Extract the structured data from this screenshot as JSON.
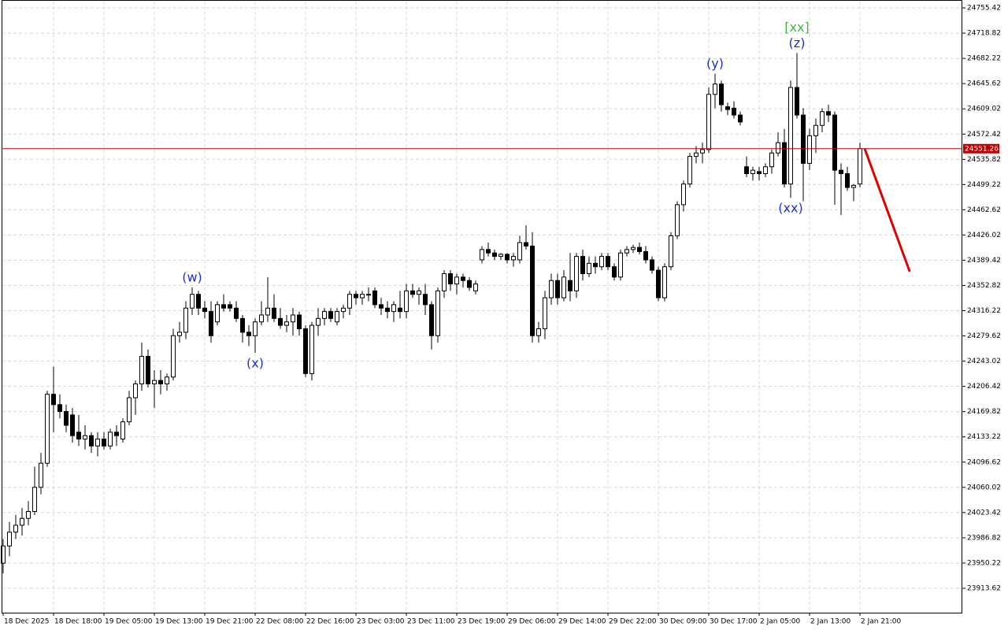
{
  "chart_data": {
    "type": "candlestick",
    "categories": [
      "18 Dec 2025",
      null,
      null,
      null,
      null,
      null,
      null,
      null,
      "18 Dec 18:00",
      null,
      null,
      null,
      null,
      null,
      null,
      null,
      "19 Dec 05:00",
      null,
      null,
      null,
      null,
      null,
      null,
      null,
      "19 Dec 13:00",
      null,
      null,
      null,
      null,
      null,
      null,
      null,
      "19 Dec 21:00",
      null,
      null,
      null,
      null,
      null,
      null,
      null,
      "22 Dec 08:00",
      null,
      null,
      null,
      null,
      null,
      null,
      null,
      "22 Dec 16:00",
      null,
      null,
      null,
      null,
      null,
      null,
      null,
      "23 Dec 03:00",
      null,
      null,
      null,
      null,
      null,
      null,
      null,
      "23 Dec 11:00",
      null,
      null,
      null,
      null,
      null,
      null,
      null,
      "23 Dec 19:00",
      null,
      null,
      null,
      null,
      null,
      null,
      null,
      "29 Dec 06:00",
      null,
      null,
      null,
      null,
      null,
      null,
      null,
      "29 Dec 14:00",
      null,
      null,
      null,
      null,
      null,
      null,
      null,
      "29 Dec 22:00",
      null,
      null,
      null,
      null,
      null,
      null,
      null,
      "30 Dec 09:00",
      null,
      null,
      null,
      null,
      null,
      null,
      null,
      "30 Dec 17:00",
      null,
      null,
      null,
      null,
      null,
      null,
      null,
      "2 Jan 05:00",
      null,
      null,
      null,
      null,
      null,
      null,
      null,
      "2 Jan 13:00",
      null,
      null,
      null,
      null,
      null,
      null,
      null,
      "2 Jan 21:00"
    ],
    "open": [
      23950,
      23975,
      23995,
      24005,
      24015,
      24025,
      24060,
      24095,
      24195,
      24180,
      24170,
      24165,
      24140,
      24130,
      24135,
      24120,
      24130,
      24120,
      24140,
      24130,
      24155,
      24190,
      24210,
      24250,
      24210,
      24215,
      24210,
      24220,
      24280,
      24285,
      24320,
      24340,
      24320,
      24315,
      24300,
      24325,
      24325,
      24320,
      24305,
      24285,
      24280,
      24300,
      24310,
      24320,
      24305,
      24295,
      24300,
      24310,
      24290,
      24225,
      24295,
      24305,
      24315,
      24300,
      24315,
      24320,
      24340,
      24335,
      24340,
      24345,
      24325,
      24320,
      24315,
      24320,
      24315,
      24345,
      24340,
      24340,
      24325,
      24280,
      24345,
      24370,
      24355,
      24365,
      24360,
      24345,
      24390,
      24405,
      24400,
      24395,
      24398,
      24390,
      24390,
      24415,
      24410,
      24280,
      24290,
      24335,
      24360,
      24335,
      24360,
      24345,
      24395,
      24370,
      24385,
      24380,
      24395,
      24380,
      24365,
      24400,
      24405,
      24408,
      24402,
      24390,
      24375,
      24335,
      24380,
      24425,
      24470,
      24500,
      24540,
      24545,
      24550,
      24630,
      24645,
      24612,
      24610,
      24600,
      24525,
      24515,
      24518,
      24515,
      24525,
      24545,
      24560,
      24500,
      24640,
      24600,
      24530,
      24570,
      24585,
      24605,
      24600,
      24520,
      24515,
      24495,
      24500
    ],
    "high": [
      23985,
      24010,
      24020,
      24030,
      24040,
      24090,
      24110,
      24200,
      24235,
      24195,
      24180,
      24175,
      24165,
      24150,
      24140,
      24140,
      24140,
      24145,
      24150,
      24160,
      24200,
      24215,
      24270,
      24260,
      24230,
      24230,
      24225,
      24290,
      24300,
      24330,
      24350,
      24345,
      24330,
      24330,
      24330,
      24340,
      24330,
      24330,
      24310,
      24295,
      24305,
      24330,
      24365,
      24340,
      24320,
      24310,
      24320,
      24315,
      24295,
      24300,
      24320,
      24320,
      24320,
      24320,
      24325,
      24345,
      24345,
      24345,
      24350,
      24350,
      24335,
      24330,
      24330,
      24345,
      24355,
      24355,
      24350,
      24355,
      24330,
      24350,
      24375,
      24375,
      24370,
      24370,
      24365,
      24360,
      24410,
      24415,
      24405,
      24400,
      24400,
      24400,
      24425,
      24440,
      24430,
      24300,
      24345,
      24370,
      24370,
      24375,
      24400,
      24400,
      24405,
      24395,
      24395,
      24400,
      24400,
      24385,
      24405,
      24410,
      24412,
      24415,
      24410,
      24395,
      24380,
      24385,
      24430,
      24475,
      24505,
      24545,
      24555,
      24560,
      24640,
      24660,
      24650,
      24618,
      24620,
      24605,
      24540,
      24525,
      24525,
      24530,
      24550,
      24575,
      24580,
      24650,
      24690,
      24610,
      24580,
      24595,
      24610,
      24615,
      24605,
      24530,
      24525,
      24500,
      24560
    ],
    "low": [
      23935,
      23960,
      23985,
      23990,
      24005,
      24020,
      24050,
      24090,
      24140,
      24160,
      24140,
      24125,
      24120,
      24115,
      24110,
      24105,
      24115,
      24115,
      24120,
      24125,
      24150,
      24165,
      24200,
      24205,
      24175,
      24195,
      24200,
      24215,
      24270,
      24275,
      24310,
      24310,
      24305,
      24270,
      24295,
      24315,
      24315,
      24300,
      24270,
      24265,
      24255,
      24295,
      24300,
      24300,
      24290,
      24285,
      24280,
      24280,
      24220,
      24215,
      24280,
      24295,
      24300,
      24295,
      24305,
      24310,
      24325,
      24325,
      24330,
      24320,
      24310,
      24305,
      24300,
      24305,
      24305,
      24335,
      24325,
      24310,
      24260,
      24270,
      24335,
      24345,
      24340,
      24350,
      24345,
      24340,
      24385,
      24395,
      24390,
      24390,
      24385,
      24380,
      24385,
      24405,
      24270,
      24270,
      24275,
      24325,
      24325,
      24330,
      24330,
      24335,
      24360,
      24365,
      24370,
      24375,
      24375,
      24360,
      24360,
      24395,
      24400,
      24398,
      24385,
      24370,
      24330,
      24330,
      24375,
      24420,
      24460,
      24495,
      24530,
      24530,
      24545,
      24610,
      24605,
      24600,
      24595,
      24585,
      24510,
      24505,
      24505,
      24510,
      24515,
      24540,
      24495,
      24480,
      24595,
      24475,
      24520,
      24545,
      24575,
      24590,
      24470,
      24455,
      24490,
      24475,
      24495
    ],
    "close": [
      23975,
      23995,
      24005,
      24015,
      24025,
      24060,
      24095,
      24195,
      24180,
      24170,
      24150,
      24135,
      24130,
      24135,
      24120,
      24130,
      24120,
      24140,
      24135,
      24155,
      24190,
      24210,
      24250,
      24210,
      24215,
      24210,
      24220,
      24280,
      24285,
      24320,
      24340,
      24320,
      24315,
      24280,
      24325,
      24320,
      24320,
      24305,
      24285,
      24280,
      24300,
      24310,
      24320,
      24305,
      24295,
      24300,
      24310,
      24290,
      24225,
      24295,
      24305,
      24315,
      24305,
      24315,
      24320,
      24340,
      24335,
      24340,
      24340,
      24325,
      24320,
      24315,
      24325,
      24315,
      24345,
      24340,
      24345,
      24325,
      24280,
      24345,
      24370,
      24355,
      24365,
      24360,
      24350,
      24355,
      24405,
      24400,
      24395,
      24398,
      24390,
      24395,
      24415,
      24410,
      24280,
      24290,
      24335,
      24360,
      24335,
      24365,
      24345,
      24395,
      24370,
      24385,
      24380,
      24395,
      24380,
      24365,
      24400,
      24405,
      24408,
      24402,
      24390,
      24375,
      24335,
      24380,
      24425,
      24470,
      24500,
      24540,
      24545,
      24550,
      24630,
      24645,
      24615,
      24608,
      24600,
      24590,
      24515,
      24520,
      24515,
      24525,
      24545,
      24560,
      24500,
      24640,
      24600,
      24530,
      24570,
      24585,
      24605,
      24600,
      24520,
      24515,
      24495,
      24498,
      24551.26
    ],
    "ylim": [
      23878.2,
      24766.9
    ],
    "yticks": [
      24755.42,
      24718.82,
      24682.22,
      24645.62,
      24609.02,
      24572.42,
      24535.82,
      24499.22,
      24462.62,
      24426.02,
      24389.42,
      24352.82,
      24316.22,
      24279.62,
      24243.02,
      24206.42,
      24169.82,
      24133.22,
      24096.62,
      24060.02,
      24023.42,
      23986.82,
      23950.22,
      23913.62
    ],
    "grid": true,
    "last_price": 24551.26,
    "last_price_color": "#c00000",
    "forecast": {
      "color": "#e00000",
      "x": [
        136.75,
        143.9
      ],
      "values": [
        24551.26,
        24373
      ]
    },
    "annotations": [
      {
        "text": "(w)",
        "at": 30,
        "side": "above",
        "color": "#1a2fd6"
      },
      {
        "text": "(x)",
        "at": 40,
        "side": "below",
        "color": "#1a2fd6"
      },
      {
        "text": "(y)",
        "at": 113,
        "side": "above",
        "color": "#1a2fd6"
      },
      {
        "text": "(z)",
        "at": 126,
        "side": "above",
        "color": "#1a2fd6"
      },
      {
        "text": "[xx]",
        "at": 126,
        "side": "above",
        "color": "#3cbc3c"
      },
      {
        "text": "(xx)",
        "at": 125,
        "side": "below",
        "color": "#1a2fd6"
      }
    ]
  }
}
